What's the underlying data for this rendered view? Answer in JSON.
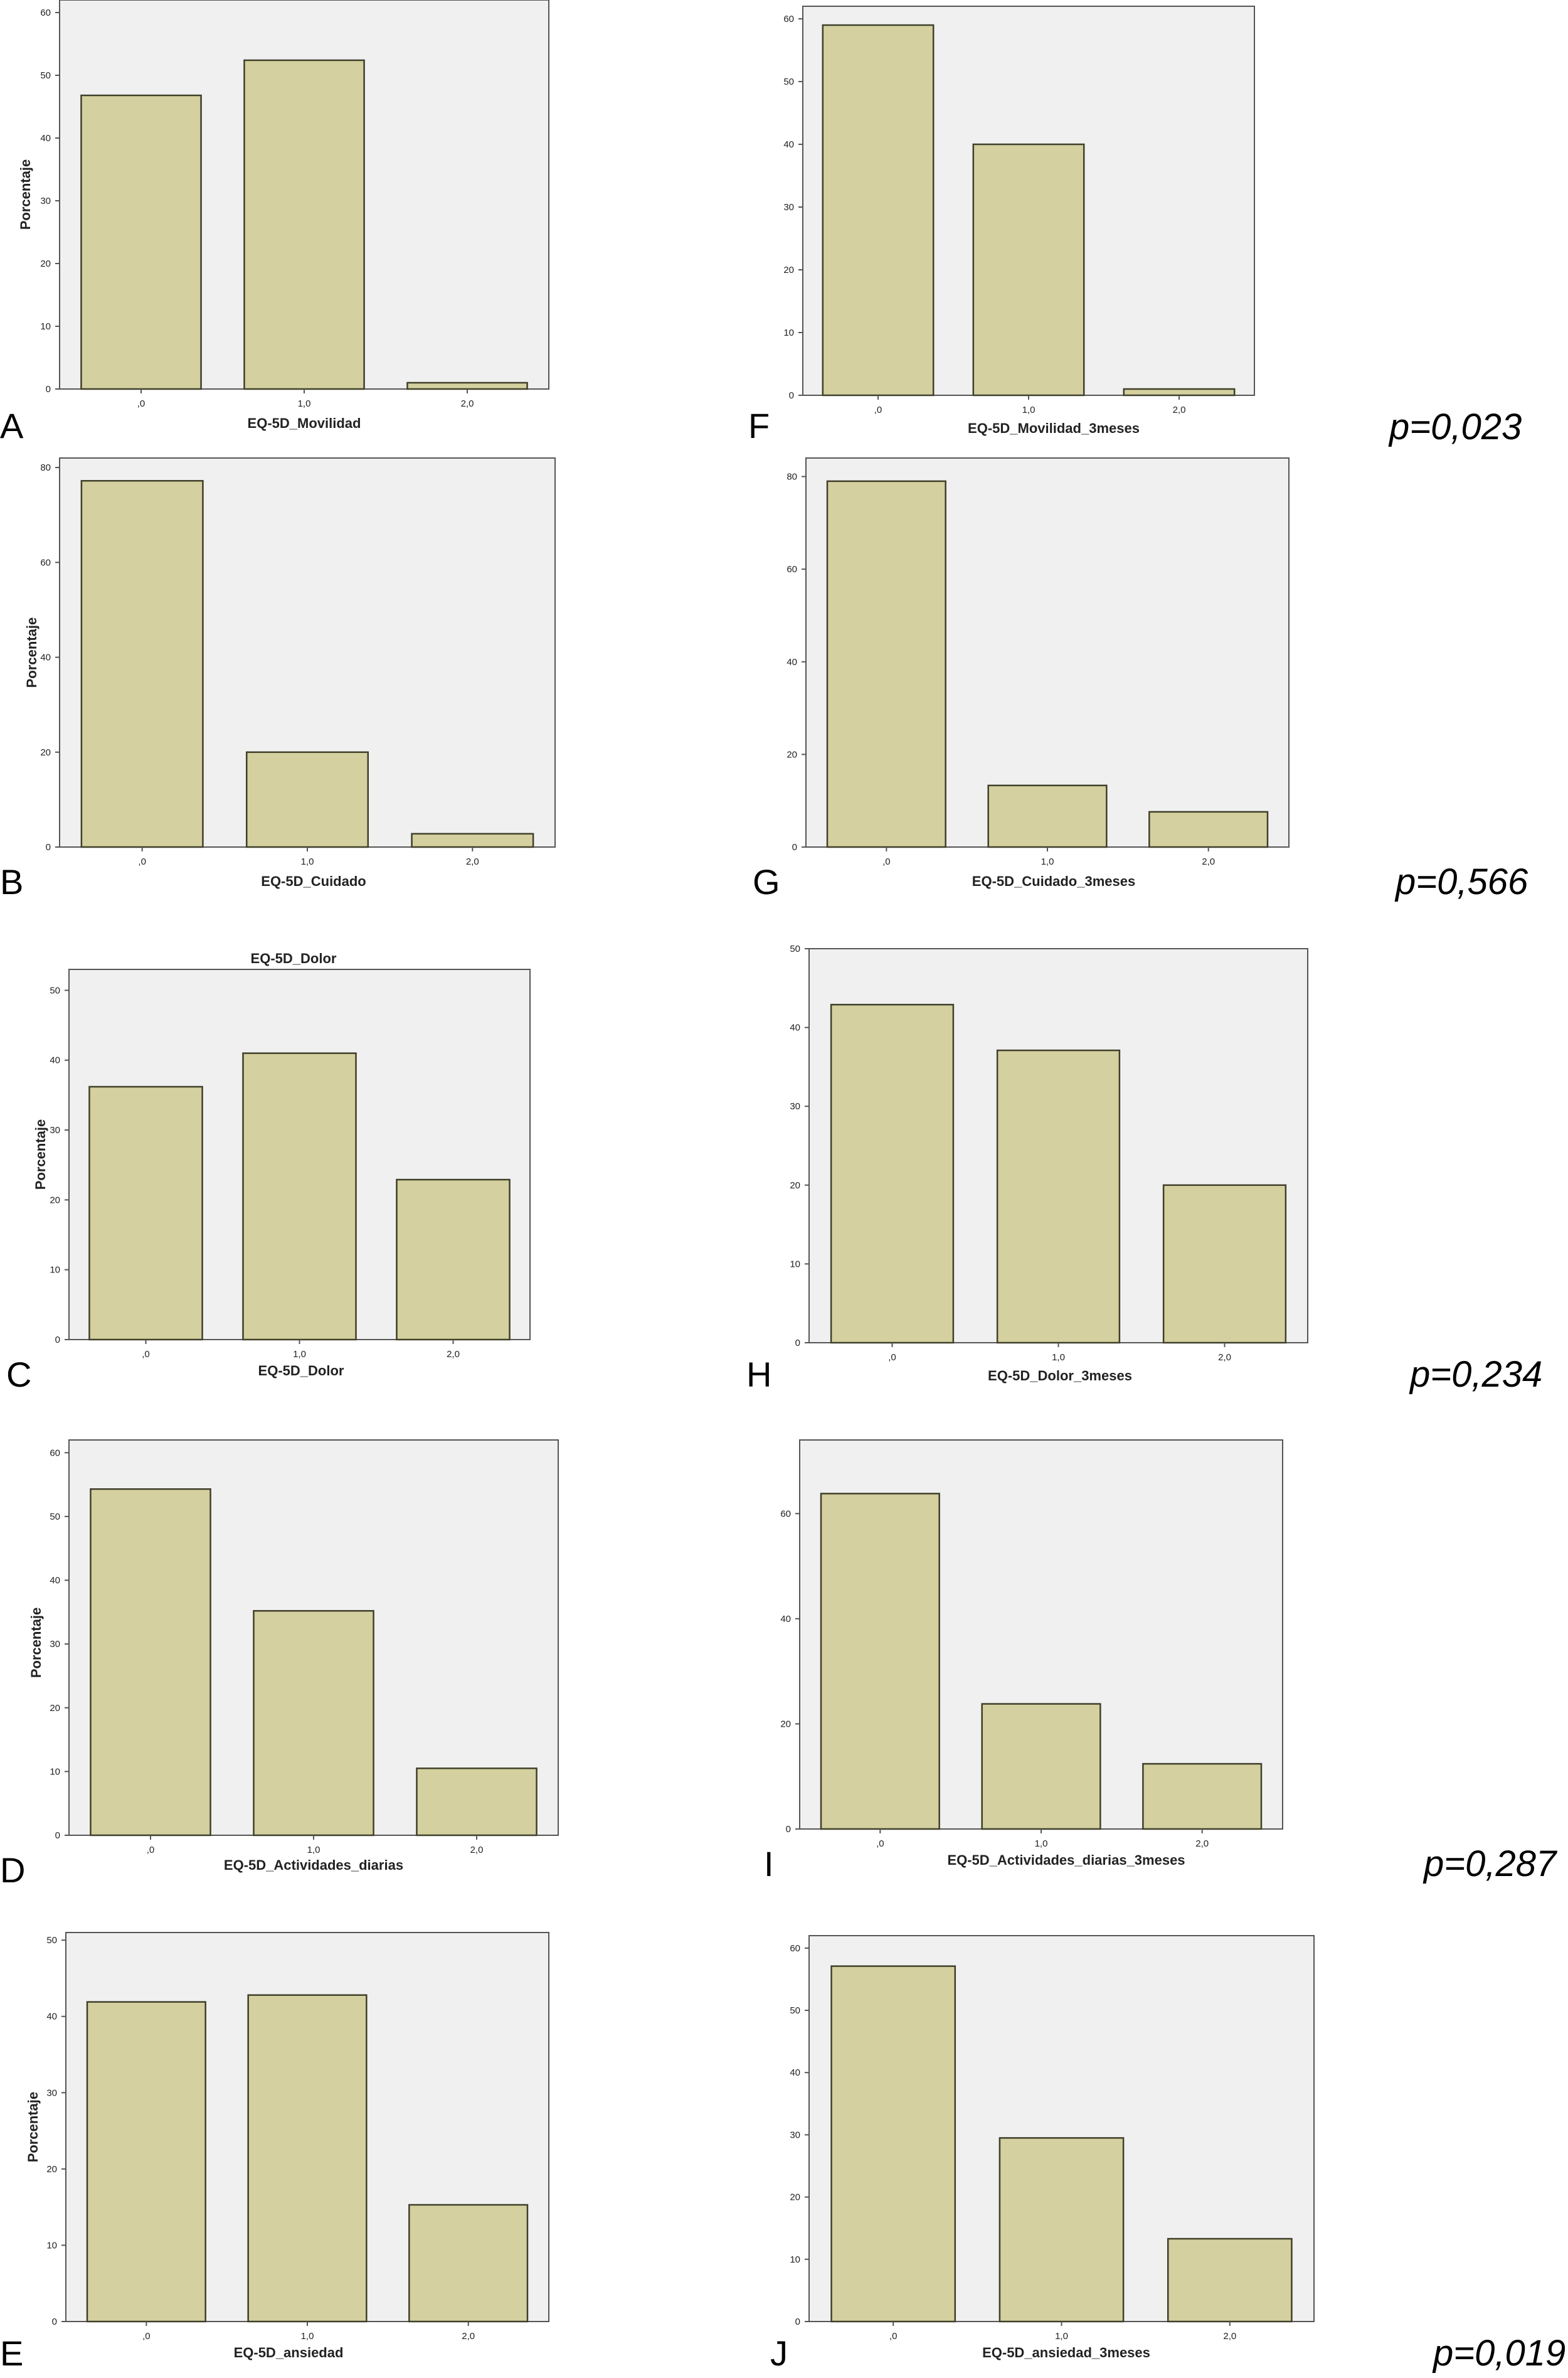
{
  "style": {
    "bar_fill": "#d4d09f",
    "bar_stroke": "#3f3f2a",
    "plot_background": "#f0f0f0",
    "axis_color": "#555555"
  },
  "chart_data": [
    {
      "id": "A",
      "panel_letter": "A",
      "type": "bar",
      "title": "",
      "xlabel": "EQ-5D_Movilidad",
      "ylabel": "Porcentaje",
      "categories": [
        ",0",
        "1,0",
        "2,0"
      ],
      "values": [
        46.8,
        52.4,
        1.0
      ],
      "ylim": [
        0,
        62
      ],
      "yticks": [
        0,
        10,
        20,
        30,
        40,
        50,
        60
      ],
      "grid": false
    },
    {
      "id": "F",
      "panel_letter": "F",
      "type": "bar",
      "title": "",
      "xlabel": "EQ-5D_Movilidad_3meses",
      "ylabel": "",
      "categories": [
        ",0",
        "1,0",
        "2,0"
      ],
      "values": [
        59.0,
        40.0,
        1.0
      ],
      "ylim": [
        0,
        62
      ],
      "yticks": [
        0,
        10,
        20,
        30,
        40,
        50,
        60
      ],
      "grid": false,
      "annotation": "p=0,023"
    },
    {
      "id": "B",
      "panel_letter": "B",
      "type": "bar",
      "title": "",
      "xlabel": "EQ-5D_Cuidado",
      "ylabel": "Porcentaje",
      "categories": [
        ",0",
        "1,0",
        "2,0"
      ],
      "values": [
        77.2,
        20.0,
        2.8
      ],
      "ylim": [
        0,
        82
      ],
      "yticks": [
        0,
        20,
        40,
        60,
        80
      ],
      "grid": false
    },
    {
      "id": "G",
      "panel_letter": "G",
      "type": "bar",
      "title": "",
      "xlabel": "EQ-5D_Cuidado_3meses",
      "ylabel": "",
      "categories": [
        ",0",
        "1,0",
        "2,0"
      ],
      "values": [
        79.0,
        13.3,
        7.6
      ],
      "ylim": [
        0,
        84
      ],
      "yticks": [
        0,
        20,
        40,
        60,
        80
      ],
      "grid": false,
      "annotation": "p=0,566"
    },
    {
      "id": "C",
      "panel_letter": "C",
      "type": "bar",
      "title": "EQ-5D_Dolor",
      "xlabel": "EQ-5D_Dolor",
      "ylabel": "Porcentaje",
      "categories": [
        ",0",
        "1,0",
        "2,0"
      ],
      "values": [
        36.2,
        41.0,
        22.9
      ],
      "ylim": [
        0,
        53
      ],
      "yticks": [
        0,
        10,
        20,
        30,
        40,
        50
      ],
      "grid": false
    },
    {
      "id": "H",
      "panel_letter": "H",
      "type": "bar",
      "title": "",
      "xlabel": "EQ-5D_Dolor_3meses",
      "ylabel": "",
      "categories": [
        ",0",
        "1,0",
        "2,0"
      ],
      "values": [
        42.9,
        37.1,
        20.0
      ],
      "ylim": [
        0,
        50
      ],
      "yticks": [
        0,
        10,
        20,
        30,
        40,
        50
      ],
      "grid": false,
      "annotation": "p=0,234"
    },
    {
      "id": "D",
      "panel_letter": "D",
      "type": "bar",
      "title": "",
      "xlabel": "EQ-5D_Actividades_diarias",
      "ylabel": "Porcentaje",
      "categories": [
        ",0",
        "1,0",
        "2,0"
      ],
      "values": [
        54.3,
        35.2,
        10.5
      ],
      "ylim": [
        0,
        62
      ],
      "yticks": [
        0,
        10,
        20,
        30,
        40,
        50,
        60
      ],
      "grid": false
    },
    {
      "id": "I",
      "panel_letter": "I",
      "type": "bar",
      "title": "",
      "xlabel": "EQ-5D_Actividades_diarias_3meses",
      "ylabel": "",
      "categories": [
        ",0",
        "1,0",
        "2,0"
      ],
      "values": [
        63.8,
        23.8,
        12.4
      ],
      "ylim": [
        0,
        74
      ],
      "yticks": [
        0,
        20,
        40,
        60
      ],
      "grid": false,
      "annotation": "p=0,287"
    },
    {
      "id": "E",
      "panel_letter": "E",
      "type": "bar",
      "title": "",
      "xlabel": "EQ-5D_ansiedad",
      "ylabel": "Porcentaje",
      "categories": [
        ",0",
        "1,0",
        "2,0"
      ],
      "values": [
        41.9,
        42.8,
        15.3
      ],
      "ylim": [
        0,
        51
      ],
      "yticks": [
        0,
        10,
        20,
        30,
        40,
        50
      ],
      "grid": false
    },
    {
      "id": "J",
      "panel_letter": "J",
      "type": "bar",
      "title": "",
      "xlabel": "EQ-5D_ansiedad_3meses",
      "ylabel": "",
      "categories": [
        ",0",
        "1,0",
        "2,0"
      ],
      "values": [
        57.1,
        29.5,
        13.3
      ],
      "ylim": [
        0,
        62
      ],
      "yticks": [
        0,
        10,
        20,
        30,
        40,
        50,
        60
      ],
      "grid": false,
      "annotation": "p=0,019"
    }
  ]
}
